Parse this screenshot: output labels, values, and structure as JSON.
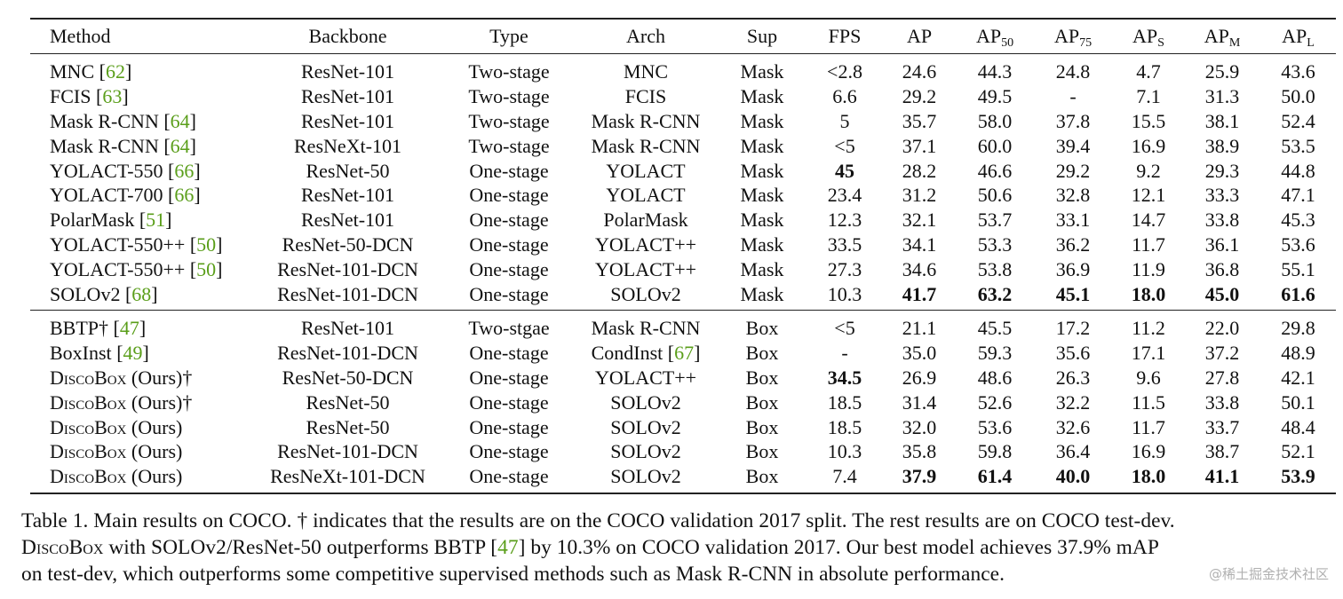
{
  "table": {
    "headers": [
      "Method",
      "Backbone",
      "Type",
      "Arch",
      "Sup",
      "FPS",
      "AP",
      "AP",
      "AP",
      "AP",
      "AP",
      "AP"
    ],
    "header_subs": [
      "",
      "",
      "",
      "",
      "",
      "",
      "",
      "50",
      "75",
      "S",
      "M",
      "L"
    ],
    "group1": [
      {
        "method": "MNC",
        "cite": "62",
        "cells": [
          "ResNet-101",
          "Two-stage",
          "MNC",
          "Mask",
          "<2.8",
          "24.6",
          "44.3",
          "24.8",
          "4.7",
          "25.9",
          "43.6"
        ],
        "bold": []
      },
      {
        "method": "FCIS",
        "cite": "63",
        "cells": [
          "ResNet-101",
          "Two-stage",
          "FCIS",
          "Mask",
          "6.6",
          "29.2",
          "49.5",
          "-",
          "7.1",
          "31.3",
          "50.0"
        ],
        "bold": []
      },
      {
        "method": "Mask R-CNN",
        "cite": "64",
        "cells": [
          "ResNet-101",
          "Two-stage",
          "Mask R-CNN",
          "Mask",
          "5",
          "35.7",
          "58.0",
          "37.8",
          "15.5",
          "38.1",
          "52.4"
        ],
        "bold": []
      },
      {
        "method": "Mask R-CNN",
        "cite": "64",
        "cells": [
          "ResNeXt-101",
          "Two-stage",
          "Mask R-CNN",
          "Mask",
          "<5",
          "37.1",
          "60.0",
          "39.4",
          "16.9",
          "38.9",
          "53.5"
        ],
        "bold": []
      },
      {
        "method": "YOLACT-550",
        "cite": "66",
        "cells": [
          "ResNet-50",
          "One-stage",
          "YOLACT",
          "Mask",
          "45",
          "28.2",
          "46.6",
          "29.2",
          "9.2",
          "29.3",
          "44.8"
        ],
        "bold": [
          4
        ]
      },
      {
        "method": "YOLACT-700",
        "cite": "66",
        "cells": [
          "ResNet-101",
          "One-stage",
          "YOLACT",
          "Mask",
          "23.4",
          "31.2",
          "50.6",
          "32.8",
          "12.1",
          "33.3",
          "47.1"
        ],
        "bold": []
      },
      {
        "method": "PolarMask",
        "cite": "51",
        "cells": [
          "ResNet-101",
          "One-stage",
          "PolarMask",
          "Mask",
          "12.3",
          "32.1",
          "53.7",
          "33.1",
          "14.7",
          "33.8",
          "45.3"
        ],
        "bold": []
      },
      {
        "method": "YOLACT-550++",
        "cite": "50",
        "cells": [
          "ResNet-50-DCN",
          "One-stage",
          "YOLACT++",
          "Mask",
          "33.5",
          "34.1",
          "53.3",
          "36.2",
          "11.7",
          "36.1",
          "53.6"
        ],
        "bold": []
      },
      {
        "method": "YOLACT-550++",
        "cite": "50",
        "cells": [
          "ResNet-101-DCN",
          "One-stage",
          "YOLACT++",
          "Mask",
          "27.3",
          "34.6",
          "53.8",
          "36.9",
          "11.9",
          "36.8",
          "55.1"
        ],
        "bold": []
      },
      {
        "method": "SOLOv2",
        "cite": "68",
        "cells": [
          "ResNet-101-DCN",
          "One-stage",
          "SOLOv2",
          "Mask",
          "10.3",
          "41.7",
          "63.2",
          "45.1",
          "18.0",
          "45.0",
          "61.6"
        ],
        "bold": [
          5,
          6,
          7,
          8,
          9,
          10
        ]
      }
    ],
    "group2": [
      {
        "method": "BBTP†",
        "cite": "47",
        "cells": [
          "ResNet-101",
          "Two-stgae",
          "Mask R-CNN",
          "Box",
          "<5",
          "21.1",
          "45.5",
          "17.2",
          "11.2",
          "22.0",
          "29.8"
        ],
        "bold": []
      },
      {
        "method": "BoxInst",
        "cite": "49",
        "cells": [
          "ResNet-101-DCN",
          "One-stage",
          "CondInst",
          "Box",
          "-",
          "35.0",
          "59.3",
          "35.6",
          "17.1",
          "37.2",
          "48.9"
        ],
        "bold": [],
        "arch_cite": "67"
      },
      {
        "method": "DiscoBox (Ours)†",
        "cite": "",
        "cells": [
          "ResNet-50-DCN",
          "One-stage",
          "YOLACT++",
          "Box",
          "34.5",
          "26.9",
          "48.6",
          "26.3",
          "9.6",
          "27.8",
          "42.1"
        ],
        "bold": [
          4
        ]
      },
      {
        "method": "DiscoBox (Ours)†",
        "cite": "",
        "cells": [
          "ResNet-50",
          "One-stage",
          "SOLOv2",
          "Box",
          "18.5",
          "31.4",
          "52.6",
          "32.2",
          "11.5",
          "33.8",
          "50.1"
        ],
        "bold": []
      },
      {
        "method": "DiscoBox (Ours)",
        "cite": "",
        "cells": [
          "ResNet-50",
          "One-stage",
          "SOLOv2",
          "Box",
          "18.5",
          "32.0",
          "53.6",
          "32.6",
          "11.7",
          "33.7",
          "48.4"
        ],
        "bold": []
      },
      {
        "method": "DiscoBox (Ours)",
        "cite": "",
        "cells": [
          "ResNet-101-DCN",
          "One-stage",
          "SOLOv2",
          "Box",
          "10.3",
          "35.8",
          "59.8",
          "36.4",
          "16.9",
          "38.7",
          "52.1"
        ],
        "bold": []
      },
      {
        "method": "DiscoBox (Ours)",
        "cite": "",
        "cells": [
          "ResNeXt-101-DCN",
          "One-stage",
          "SOLOv2",
          "Box",
          "7.4",
          "37.9",
          "61.4",
          "40.0",
          "18.0",
          "41.1",
          "53.9"
        ],
        "bold": [
          5,
          6,
          7,
          8,
          9,
          10
        ]
      }
    ]
  },
  "caption": {
    "line1": "Table 1. Main results on COCO. † indicates that the results are on the COCO validation 2017 split. The rest results are on COCO test-dev.",
    "line2_name": "DiscoBox",
    "line2_a": " with SOLOv2/ResNet-50 outperforms BBTP [",
    "line2_cite": "47",
    "line2_b": "] by 10.3% on COCO validation 2017. Our best model achieves 37.9% mAP",
    "line3": "on test-dev, which outperforms some competitive supervised methods such as Mask R-CNN in absolute performance."
  },
  "watermark": "@稀土掘金技术社区"
}
